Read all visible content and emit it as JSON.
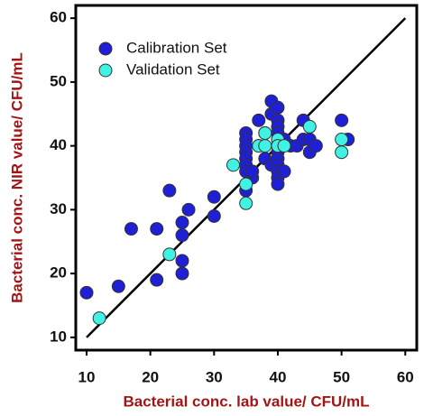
{
  "chart_data": {
    "type": "scatter",
    "x_label": "Bacterial conc. lab value/ CFU/mL",
    "y_label": "Bacterial conc. NIR value/ CFU/mL",
    "xlim": [
      8.3,
      61.8
    ],
    "ylim": [
      8,
      62
    ],
    "xticks": [
      10,
      20,
      30,
      40,
      50,
      60
    ],
    "yticks": [
      10,
      20,
      30,
      40,
      50,
      60
    ],
    "legend": "upper left",
    "reference_line": {
      "x": [
        10,
        60
      ],
      "y": [
        10,
        60
      ],
      "color": "#000000"
    },
    "series": [
      {
        "name": "Calibration Set",
        "color": "#1f1fd6",
        "x": [
          10,
          15,
          17,
          21,
          21,
          23,
          25,
          25,
          25,
          25,
          26,
          30,
          30,
          35,
          35,
          35,
          35,
          35,
          35,
          35,
          35,
          36,
          36,
          37,
          37,
          38,
          38,
          39,
          39,
          39,
          40,
          40,
          40,
          40,
          40,
          40,
          40,
          40,
          40,
          40,
          40,
          40,
          41,
          41,
          42,
          43,
          44,
          44,
          45,
          45,
          46,
          50,
          51
        ],
        "y": [
          17,
          18,
          27,
          27,
          19,
          33,
          28,
          26,
          22,
          20,
          30,
          32,
          29,
          42,
          41,
          40,
          39,
          38,
          37,
          36,
          33,
          35,
          36,
          44,
          40,
          42,
          38,
          47,
          45,
          37,
          46,
          44,
          43,
          42,
          41,
          40,
          39,
          38,
          37,
          36,
          35,
          34,
          41,
          36,
          40,
          40,
          44,
          41,
          39,
          41,
          40,
          44,
          41
        ]
      },
      {
        "name": "Validation Set",
        "color": "#40f2e4",
        "x": [
          12,
          23,
          33,
          35,
          35,
          37,
          38,
          38,
          40,
          40,
          41,
          45,
          50,
          50
        ],
        "y": [
          13,
          23,
          37,
          31,
          34,
          40,
          40,
          42,
          41,
          40,
          40,
          43,
          41,
          39
        ]
      }
    ]
  }
}
